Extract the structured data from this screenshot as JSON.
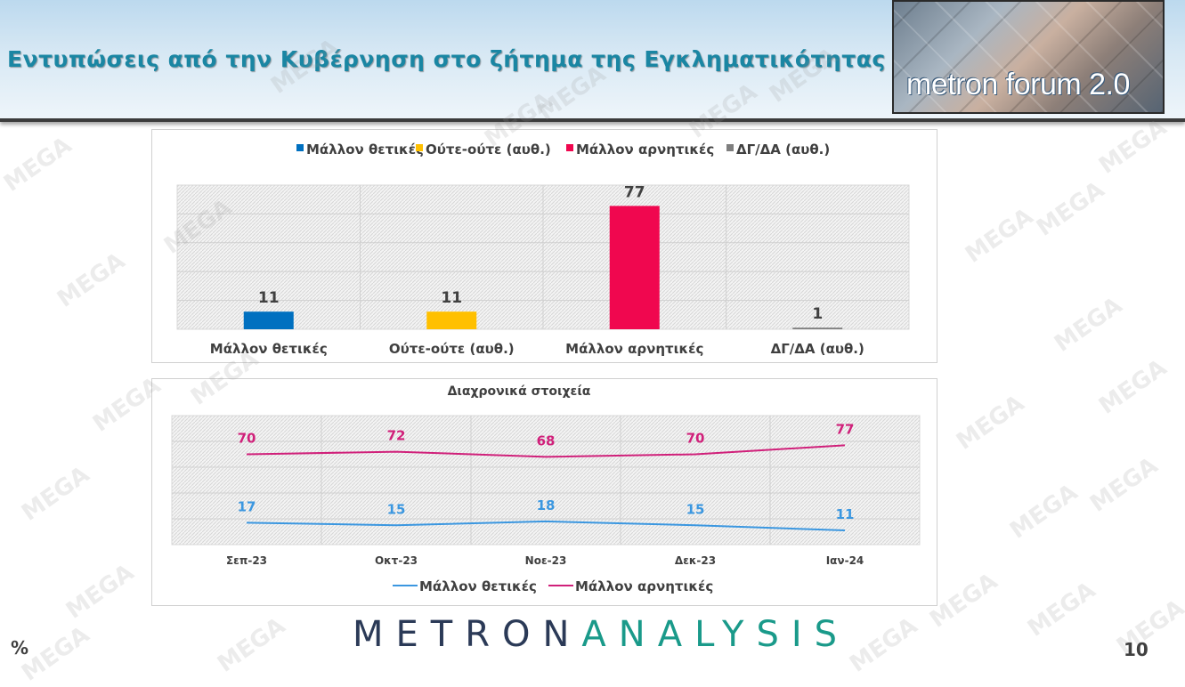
{
  "header": {
    "title": "Εντυπώσεις από την Κυβέρνηση στο ζήτημα της Εγκληματικότητας",
    "logo_text": "metron forum 2.0"
  },
  "watermark": "MEGA",
  "footer": {
    "brand_a": "METRON",
    "brand_b": "ANALYSIS",
    "percent_symbol": "%",
    "page_number": "10"
  },
  "colors": {
    "positive": "#0070c0",
    "neutral": "#ffc000",
    "negative": "#f0074f",
    "dkna": "#7f7f7f",
    "line_pos": "#3b97e0",
    "line_neg": "#d0207a"
  },
  "chart_data": [
    {
      "type": "bar",
      "categories": [
        "Μάλλον θετικές",
        "Ούτε-ούτε (αυθ.)",
        "Μάλλον αρνητικές",
        "ΔΓ/ΔΑ (αυθ.)"
      ],
      "values": [
        11,
        11,
        77,
        1
      ],
      "value_labels": [
        "11",
        "11",
        "77",
        "1"
      ],
      "legend": [
        "Μάλλον θετικές",
        "Ούτε-ούτε (αυθ.)",
        "Μάλλον αρνητικές",
        "ΔΓ/ΔΑ (αυθ.)"
      ],
      "legend_position": "top",
      "ylim": [
        0,
        90
      ],
      "grid": true
    },
    {
      "type": "line",
      "title": "Διαχρονικά στοιχεία",
      "x": [
        "Σεπ-23",
        "Οκτ-23",
        "Νοε-23",
        "Δεκ-23",
        "Ιαν-24"
      ],
      "series": [
        {
          "name": "Μάλλον θετικές",
          "values": [
            17,
            15,
            18,
            15,
            11
          ],
          "labels": [
            "17",
            "15",
            "18",
            "15",
            "11"
          ]
        },
        {
          "name": "Μάλλον αρνητικές",
          "values": [
            70,
            72,
            68,
            70,
            77
          ],
          "labels": [
            "70",
            "72",
            "68",
            "70",
            "77"
          ]
        }
      ],
      "legend_position": "bottom",
      "ylim": [
        0,
        100
      ],
      "grid": true
    }
  ]
}
